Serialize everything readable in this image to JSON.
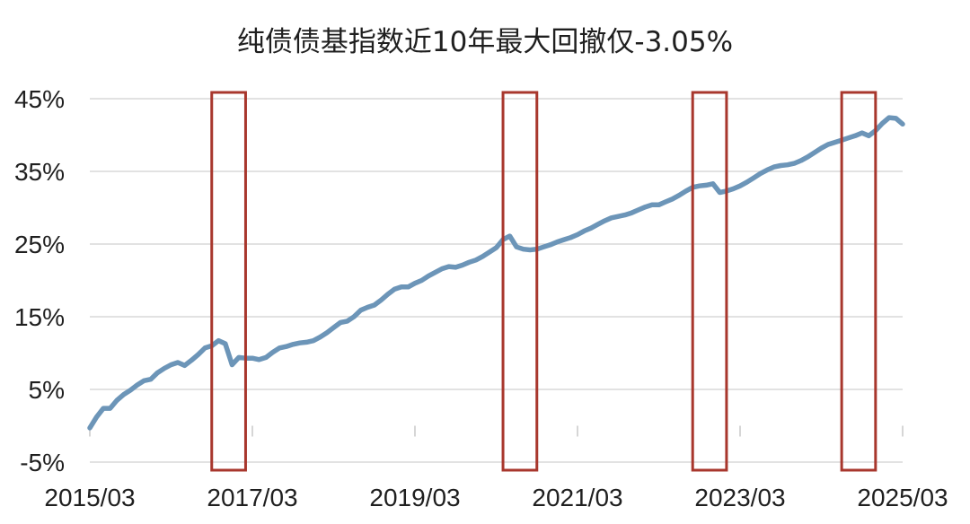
{
  "chart_data": {
    "type": "line",
    "title": "纯债债基指数近10年最大回撤仅-3.05%",
    "x_ticks": [
      "2015/03",
      "2017/03",
      "2019/03",
      "2021/03",
      "2023/03",
      "2025/03"
    ],
    "y_ticks": [
      "45%",
      "35%",
      "25%",
      "15%",
      "5%",
      "-5%"
    ],
    "xlim": [
      "2015/03",
      "2025/03"
    ],
    "ylim": [
      -5,
      45
    ],
    "grid": true,
    "x": [
      "2015/03",
      "2015/04",
      "2015/05",
      "2015/06",
      "2015/07",
      "2015/08",
      "2015/09",
      "2015/10",
      "2015/11",
      "2015/12",
      "2016/01",
      "2016/02",
      "2016/03",
      "2016/04",
      "2016/05",
      "2016/06",
      "2016/07",
      "2016/08",
      "2016/09",
      "2016/10",
      "2016/11",
      "2016/12",
      "2017/01",
      "2017/02",
      "2017/03",
      "2017/04",
      "2017/05",
      "2017/06",
      "2017/07",
      "2017/08",
      "2017/09",
      "2017/10",
      "2017/11",
      "2017/12",
      "2018/01",
      "2018/02",
      "2018/03",
      "2018/04",
      "2018/05",
      "2018/06",
      "2018/07",
      "2018/08",
      "2018/09",
      "2018/10",
      "2018/11",
      "2018/12",
      "2019/01",
      "2019/02",
      "2019/03",
      "2019/04",
      "2019/05",
      "2019/06",
      "2019/07",
      "2019/08",
      "2019/09",
      "2019/10",
      "2019/11",
      "2019/12",
      "2020/01",
      "2020/02",
      "2020/03",
      "2020/04",
      "2020/05",
      "2020/06",
      "2020/07",
      "2020/08",
      "2020/09",
      "2020/10",
      "2020/11",
      "2020/12",
      "2021/01",
      "2021/02",
      "2021/03",
      "2021/04",
      "2021/05",
      "2021/06",
      "2021/07",
      "2021/08",
      "2021/09",
      "2021/10",
      "2021/11",
      "2021/12",
      "2022/01",
      "2022/02",
      "2022/03",
      "2022/04",
      "2022/05",
      "2022/06",
      "2022/07",
      "2022/08",
      "2022/09",
      "2022/10",
      "2022/11",
      "2022/12",
      "2023/01",
      "2023/02",
      "2023/03",
      "2023/04",
      "2023/05",
      "2023/06",
      "2023/07",
      "2023/08",
      "2023/09",
      "2023/10",
      "2023/11",
      "2023/12",
      "2024/01",
      "2024/02",
      "2024/03",
      "2024/04",
      "2024/05",
      "2024/06",
      "2024/07",
      "2024/08",
      "2024/09",
      "2024/10",
      "2024/11",
      "2024/12",
      "2025/01",
      "2025/02",
      "2025/03"
    ],
    "series": [
      {
        "values": [
          -0.3,
          1.2,
          2.4,
          2.4,
          3.5,
          4.3,
          4.9,
          5.6,
          6.2,
          6.4,
          7.3,
          7.9,
          8.4,
          8.7,
          8.3,
          9.0,
          9.8,
          10.7,
          11.0,
          11.7,
          11.3,
          8.4,
          9.4,
          9.3,
          9.3,
          9.1,
          9.4,
          10.1,
          10.7,
          10.9,
          11.2,
          11.4,
          11.5,
          11.7,
          12.2,
          12.8,
          13.5,
          14.2,
          14.4,
          15.0,
          15.9,
          16.3,
          16.6,
          17.3,
          18.1,
          18.8,
          19.1,
          19.1,
          19.6,
          20.0,
          20.6,
          21.1,
          21.6,
          21.9,
          21.8,
          22.1,
          22.5,
          22.8,
          23.3,
          23.9,
          24.5,
          25.6,
          26.1,
          24.6,
          24.3,
          24.2,
          24.3,
          24.6,
          24.9,
          25.3,
          25.6,
          25.9,
          26.3,
          26.8,
          27.2,
          27.7,
          28.2,
          28.6,
          28.8,
          29.0,
          29.3,
          29.7,
          30.1,
          30.4,
          30.4,
          30.8,
          31.2,
          31.7,
          32.3,
          32.8,
          33.0,
          33.1,
          33.3,
          32.1,
          32.3,
          32.6,
          33.0,
          33.5,
          34.1,
          34.7,
          35.2,
          35.6,
          35.8,
          35.9,
          36.1,
          36.5,
          37.0,
          37.6,
          38.2,
          38.7,
          39.0,
          39.3,
          39.6,
          39.9,
          40.3,
          39.9,
          40.6,
          41.6,
          42.4,
          42.3,
          41.5
        ]
      }
    ],
    "highlight_periods": [
      {
        "from": "2016/09",
        "to": "2017/02"
      },
      {
        "from": "2020/04",
        "to": "2020/09"
      },
      {
        "from": "2022/08",
        "to": "2023/01"
      },
      {
        "from": "2024/06",
        "to": "2024/11"
      }
    ],
    "colors": {
      "line": "#6c95b8",
      "highlight": "#a8372d",
      "grid": "#d9d9d9",
      "tick": "#c8c8c8"
    }
  }
}
